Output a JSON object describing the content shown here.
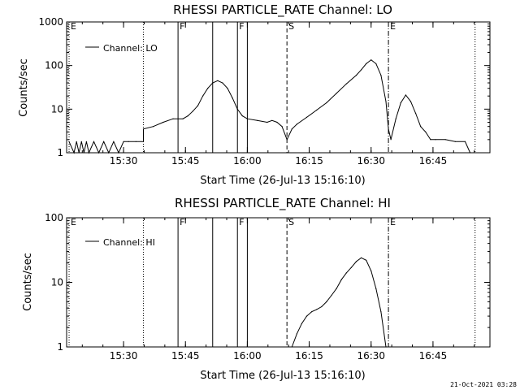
{
  "timestamp": "21-Oct-2021 03:28",
  "chart_data": [
    {
      "type": "line",
      "title": "RHESSI PARTICLE_RATE Channel: LO",
      "xlabel": "Start Time (26-Jul-13 15:16:10)",
      "ylabel": "Counts/sec",
      "legend": "Channel: LO",
      "legend_position": "top-left",
      "yscale": "log",
      "xlim": [
        15.27,
        16.98
      ],
      "ylim": [
        1,
        1000
      ],
      "x_ticks": [
        "15:30",
        "15:45",
        "16:00",
        "16:15",
        "16:30",
        "16:45"
      ],
      "y_ticks": [
        "1",
        "10",
        "100",
        "1000"
      ],
      "markers": [
        {
          "label": "E",
          "x": 15.28,
          "style": "dotted"
        },
        {
          "label": "",
          "x": 15.58,
          "style": "dotted"
        },
        {
          "label": "F",
          "x": 15.72,
          "style": "solid"
        },
        {
          "label": "",
          "x": 15.86,
          "style": "solid"
        },
        {
          "label": "F",
          "x": 15.96,
          "style": "solid"
        },
        {
          "label": "",
          "x": 16.0,
          "style": "solid"
        },
        {
          "label": "S",
          "x": 16.16,
          "style": "dashed"
        },
        {
          "label": "E",
          "x": 16.57,
          "style": "dashdot"
        },
        {
          "label": "",
          "x": 16.92,
          "style": "dotted"
        }
      ],
      "x": [
        15.28,
        15.3,
        15.31,
        15.32,
        15.33,
        15.34,
        15.35,
        15.36,
        15.38,
        15.4,
        15.42,
        15.44,
        15.46,
        15.48,
        15.5,
        15.52,
        15.55,
        15.58,
        15.58,
        15.62,
        15.66,
        15.7,
        15.74,
        15.76,
        15.78,
        15.8,
        15.82,
        15.84,
        15.86,
        15.88,
        15.9,
        15.92,
        15.94,
        15.96,
        15.98,
        16.0,
        16.04,
        16.08,
        16.1,
        16.12,
        16.14,
        16.16,
        16.18,
        16.2,
        16.24,
        16.28,
        16.32,
        16.36,
        16.4,
        16.44,
        16.46,
        16.48,
        16.5,
        16.52,
        16.54,
        16.56,
        16.57,
        16.58,
        16.6,
        16.62,
        16.64,
        16.66,
        16.68,
        16.7,
        16.72,
        16.74,
        16.76,
        16.8,
        16.84,
        16.88,
        16.9
      ],
      "y": [
        1.8,
        1.0,
        1.8,
        1.0,
        1.8,
        1.0,
        1.8,
        1.0,
        1.8,
        1.0,
        1.8,
        1.0,
        1.8,
        1.0,
        1.8,
        1.8,
        1.8,
        1.8,
        3.5,
        4,
        5,
        6,
        6,
        7,
        9,
        12,
        20,
        30,
        40,
        45,
        40,
        30,
        18,
        10,
        7,
        6,
        5.5,
        5,
        5.5,
        5,
        4,
        2.0,
        3.5,
        4.5,
        6.5,
        9.5,
        14,
        23,
        38,
        60,
        80,
        110,
        135,
        110,
        60,
        15,
        3.5,
        2.0,
        6,
        14,
        21,
        15,
        8,
        4,
        3,
        2,
        2,
        2,
        1.8,
        1.8,
        1.0
      ]
    },
    {
      "type": "line",
      "title": "RHESSI PARTICLE_RATE Channel: HI",
      "xlabel": "Start Time (26-Jul-13 15:16:10)",
      "ylabel": "Counts/sec",
      "legend": "Channel: HI",
      "legend_position": "top-left",
      "yscale": "log",
      "xlim": [
        15.27,
        16.98
      ],
      "ylim": [
        1,
        100
      ],
      "x_ticks": [
        "15:30",
        "15:45",
        "16:00",
        "16:15",
        "16:30",
        "16:45"
      ],
      "y_ticks": [
        "1",
        "10",
        "100"
      ],
      "markers": [
        {
          "label": "E",
          "x": 15.28,
          "style": "dotted"
        },
        {
          "label": "",
          "x": 15.58,
          "style": "dotted"
        },
        {
          "label": "F",
          "x": 15.72,
          "style": "solid"
        },
        {
          "label": "",
          "x": 15.86,
          "style": "solid"
        },
        {
          "label": "F",
          "x": 15.96,
          "style": "solid"
        },
        {
          "label": "",
          "x": 16.0,
          "style": "solid"
        },
        {
          "label": "S",
          "x": 16.16,
          "style": "dashed"
        },
        {
          "label": "E",
          "x": 16.57,
          "style": "dashdot"
        },
        {
          "label": "",
          "x": 16.92,
          "style": "dotted"
        }
      ],
      "x": [
        16.18,
        16.2,
        16.22,
        16.24,
        16.26,
        16.28,
        16.3,
        16.32,
        16.34,
        16.36,
        16.38,
        16.4,
        16.42,
        16.44,
        16.46,
        16.48,
        16.5,
        16.52,
        16.54,
        16.56
      ],
      "y": [
        1.0,
        1.6,
        2.3,
        3.0,
        3.5,
        3.8,
        4.2,
        5.0,
        6.3,
        8.0,
        11,
        14,
        17,
        21,
        24,
        22,
        15,
        8,
        3.5,
        1.0
      ]
    }
  ]
}
